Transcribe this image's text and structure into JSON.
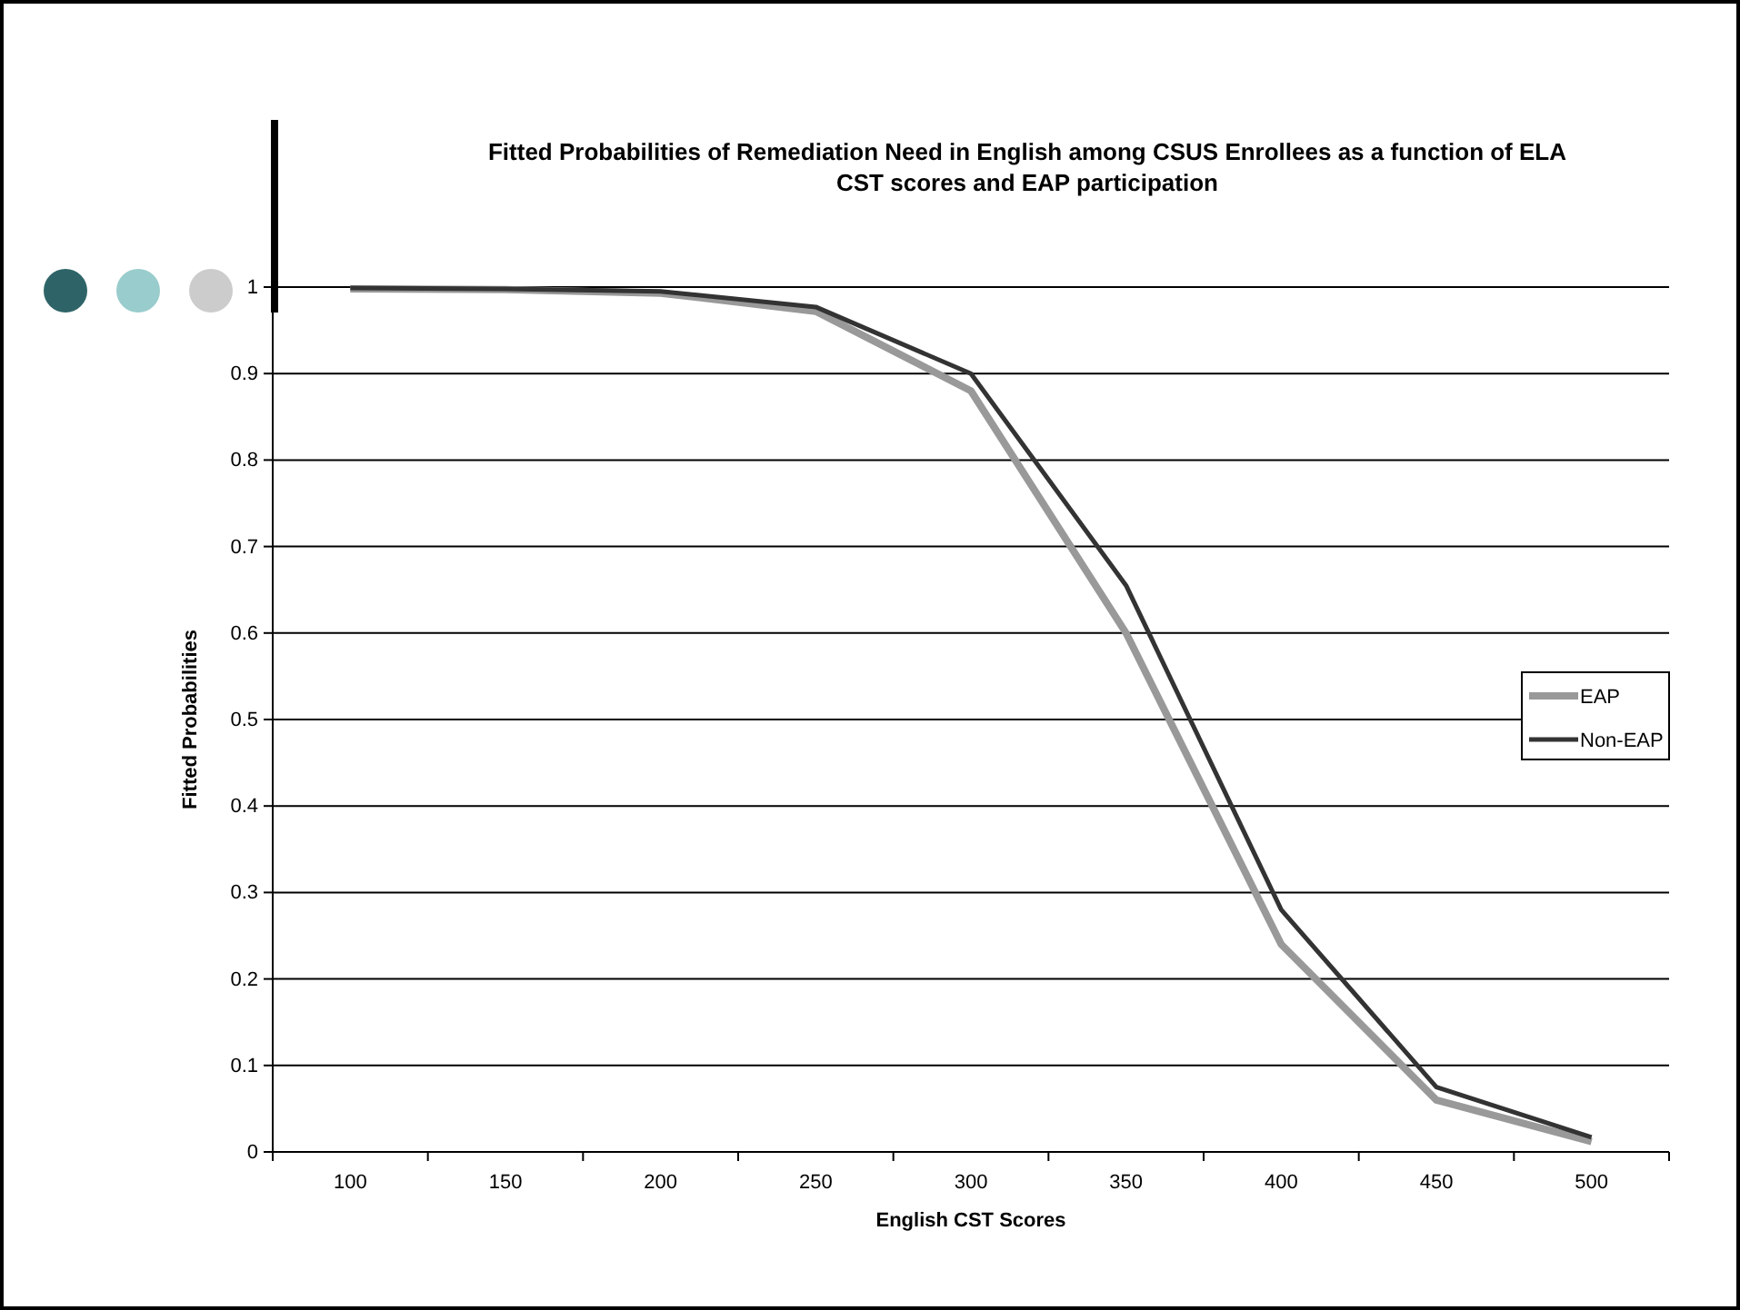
{
  "chart_data": {
    "type": "line",
    "title": "Fitted Probabilities of Remediation Need in English among CSUS Enrollees as a function of ELA CST scores and EAP participation",
    "xlabel": "English CST Scores",
    "ylabel": "Fitted Probabilities",
    "categories": [
      "100",
      "150",
      "200",
      "250",
      "300",
      "350",
      "400",
      "450",
      "500"
    ],
    "series": [
      {
        "name": "EAP",
        "color": "#999999",
        "values": [
          0.998,
          0.997,
          0.993,
          0.972,
          0.88,
          0.6,
          0.24,
          0.06,
          0.012
        ]
      },
      {
        "name": "Non-EAP",
        "color": "#333333",
        "values": [
          0.999,
          0.998,
          0.995,
          0.977,
          0.9,
          0.655,
          0.28,
          0.075,
          0.017
        ]
      }
    ],
    "ylim": [
      0,
      1
    ],
    "yticks": [
      0,
      0.1,
      0.2,
      0.3,
      0.4,
      0.5,
      0.6,
      0.7,
      0.8,
      0.9,
      1
    ],
    "grid": "y",
    "legend": "right",
    "marker": "none",
    "line_style": "solid"
  }
}
